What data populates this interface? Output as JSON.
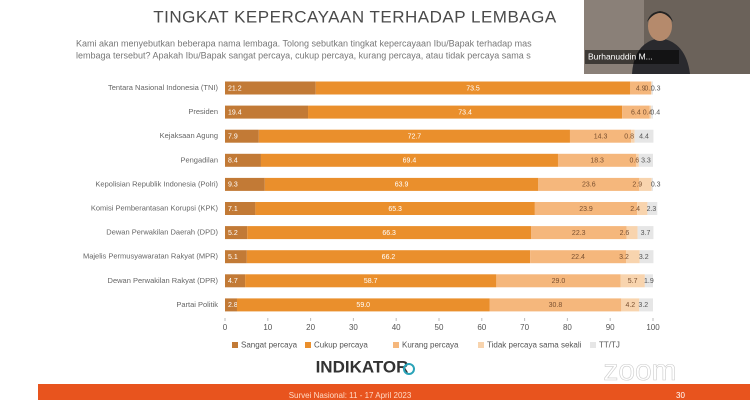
{
  "slide": {
    "title": "TINGKAT KEPERCAYAAN TERHADAP LEMBAGA",
    "question_lines": [
      "Kami akan menyebutkan beberapa nama lembaga. Tolong sebutkan tingkat kepercayaan Ibu/Bapak terhadap mas",
      "lembaga tersebut? Apakah Ibu/Bapak sangat percaya, cukup percaya, kurang percaya, atau tidak percaya sama s"
    ],
    "logo": "INDIKATOR",
    "footer": "Survei Nasional: 11 - 17 April 2023",
    "page": "30"
  },
  "video": {
    "participant": "Burhanuddin M...",
    "watermark": "zoom"
  },
  "chart_data": {
    "type": "stacked-bar-horizontal",
    "categories": [
      "Tentara Nasional Indonesia (TNI)",
      "Presiden",
      "Kejaksaan Agung",
      "Pengadilan",
      "Kepolisian Republik Indonesia (Polri)",
      "Komisi Pemberantasan Korupsi (KPK)",
      "Dewan Perwakilan Daerah (DPD)",
      "Majelis Permusyawaratan Rakyat (MPR)",
      "Dewan Perwakilan Rakyat (DPR)",
      "Partai Politik"
    ],
    "series": [
      {
        "name": "Sangat percaya",
        "color": "#c27a36",
        "label_color": "#ffffff",
        "values": [
          21.2,
          19.4,
          7.9,
          8.4,
          9.3,
          7.1,
          5.2,
          5.1,
          4.7,
          2.8
        ],
        "value_labels": [
          "21.2",
          "19.4",
          "7.9",
          "8.4",
          "9.3",
          "7.1",
          "5.2",
          "5.1",
          "4.7",
          "2.8"
        ]
      },
      {
        "name": "Cukup percaya",
        "color": "#ea8f2c",
        "label_color": "#ffffff",
        "values": [
          73.5,
          73.4,
          72.7,
          69.4,
          63.9,
          65.3,
          66.3,
          66.2,
          58.7,
          59.0
        ],
        "value_labels": [
          "73.5",
          "73.4",
          "72.7",
          "69.4",
          "63.9",
          "65.3",
          "66.3",
          "66.2",
          "58.7",
          "59.0"
        ]
      },
      {
        "name": "Kurang percaya",
        "color": "#f5b77c",
        "label_color": "#7a5030",
        "values": [
          4.9,
          6.4,
          14.3,
          18.3,
          23.6,
          23.9,
          22.3,
          22.4,
          29.0,
          30.8
        ],
        "value_labels": [
          "4.9",
          "6.4",
          "14.3",
          "18.3",
          "23.6",
          "23.9",
          "22.3",
          "22.4",
          "29.0",
          "30.8"
        ]
      },
      {
        "name": "Tidak percaya sama sekali",
        "color": "#f8d4ae",
        "label_color": "#7a5030",
        "values": [
          0.1,
          0.4,
          0.8,
          0.6,
          2.9,
          2.4,
          2.6,
          3.2,
          5.7,
          4.2
        ],
        "value_labels": [
          "0.1",
          "0.4",
          "0.8",
          "0.6",
          "2.9",
          "2.4",
          "2.6",
          "3.2",
          "5.7",
          "4.2"
        ]
      },
      {
        "name": "TT/TJ",
        "color": "#e6e6e6",
        "label_color": "#555555",
        "values": [
          0.3,
          0.4,
          4.4,
          3.3,
          0.3,
          2.3,
          3.7,
          3.2,
          1.9,
          3.2
        ],
        "value_labels": [
          "0.3",
          "0.4",
          "4.4",
          "3.3",
          "0.3",
          "2.3",
          "3.7",
          "3.2",
          "1.9",
          "3.2"
        ]
      }
    ],
    "xlim": [
      0,
      100
    ],
    "xticks": [
      0,
      10,
      20,
      30,
      40,
      50,
      60,
      70,
      80,
      90,
      100
    ],
    "grid": false
  }
}
